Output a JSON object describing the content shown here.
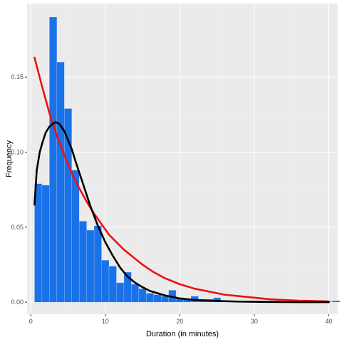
{
  "chart_data": {
    "type": "bar",
    "xlabel": "Duration (in minutes)",
    "ylabel": "Frequency",
    "xlim": [
      -0.5,
      41.2
    ],
    "ylim": [
      -0.008,
      0.199
    ],
    "x_ticks": [
      0,
      10,
      20,
      30,
      40
    ],
    "x_tick_labels": [
      "0",
      "10",
      "20",
      "30",
      "40"
    ],
    "y_ticks": [
      0.0,
      0.05,
      0.1,
      0.15
    ],
    "y_tick_labels": [
      "0.00",
      "0.05",
      "0.10",
      "0.15"
    ],
    "grid": true,
    "histogram": {
      "bin_width": 1,
      "x": [
        0.5,
        1.5,
        2.5,
        3.5,
        4.5,
        5.5,
        6.5,
        7.5,
        8.5,
        9.5,
        10.5,
        11.5,
        12.5,
        13.5,
        14.5,
        15.5,
        16.5,
        17.5,
        18.5,
        19.5,
        20.5,
        21.5,
        22.5,
        23.5,
        24.5,
        25.5,
        26.5,
        27.5,
        28.5,
        29.5,
        30.5,
        31.5,
        32.5,
        33.5,
        34.5,
        35.5,
        36.5,
        37.5,
        38.5,
        39.5,
        40.5
      ],
      "values": [
        0.079,
        0.078,
        0.19,
        0.16,
        0.129,
        0.088,
        0.054,
        0.048,
        0.051,
        0.028,
        0.024,
        0.013,
        0.02,
        0.012,
        0.009,
        0.006,
        0.005,
        0.004,
        0.008,
        0.003,
        0.002,
        0.004,
        0.002,
        0.002,
        0.003,
        0.001,
        0.001,
        0.001,
        0.001,
        0.001,
        0.001,
        0.001,
        0.001,
        0.0005,
        0.0005,
        0.0005,
        0.0005,
        0.0005,
        0.0005,
        0.0005,
        0.001
      ],
      "color": "#1a72e8"
    },
    "series": [
      {
        "curve": "exponential",
        "color": "#ee1111",
        "x": [
          0.5,
          1.5,
          2.5,
          3.5,
          4.5,
          5.5,
          6.5,
          7.5,
          8.5,
          9.5,
          10.5,
          11.5,
          12.5,
          13.5,
          15,
          16.5,
          18,
          20,
          22,
          24,
          26,
          28,
          30,
          32,
          34,
          36,
          38,
          40
        ],
        "y": [
          0.163,
          0.144,
          0.126,
          0.111,
          0.098,
          0.086,
          0.076,
          0.067,
          0.059,
          0.052,
          0.045,
          0.04,
          0.035,
          0.031,
          0.025,
          0.02,
          0.016,
          0.012,
          0.009,
          0.007,
          0.005,
          0.004,
          0.003,
          0.002,
          0.0015,
          0.001,
          0.0008,
          0.0005
        ]
      },
      {
        "curve": "gamma",
        "color": "#000000",
        "x": [
          0.5,
          0.8,
          1.2,
          1.6,
          2.0,
          2.5,
          3.0,
          3.3,
          3.8,
          4.5,
          5.0,
          5.5,
          6.0,
          7.0,
          8.0,
          9.0,
          10.0,
          11.0,
          12.0,
          13.0,
          14.0,
          15.0,
          16.0,
          18.0,
          20.0,
          22.0,
          25.0,
          28.0,
          32.0,
          36.0,
          40.0
        ],
        "y": [
          0.065,
          0.088,
          0.1,
          0.107,
          0.113,
          0.117,
          0.119,
          0.12,
          0.119,
          0.114,
          0.108,
          0.102,
          0.094,
          0.079,
          0.064,
          0.051,
          0.04,
          0.031,
          0.023,
          0.017,
          0.013,
          0.01,
          0.0075,
          0.0045,
          0.0025,
          0.0015,
          0.0008,
          0.0004,
          0.00015,
          5e-05,
          2e-05
        ]
      }
    ]
  }
}
